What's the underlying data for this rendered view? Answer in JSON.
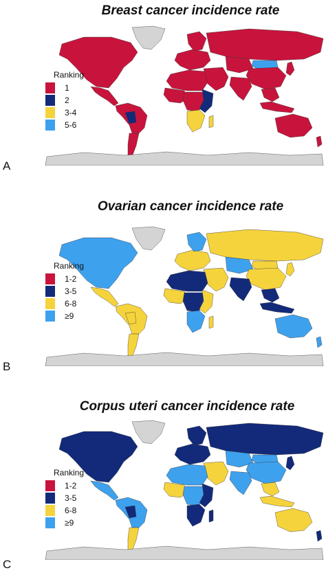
{
  "palette": {
    "rank_red": "#c8143c",
    "rank_navy": "#132a7a",
    "rank_yellow": "#f5d33d",
    "rank_blue": "#3ea1ee",
    "no_data": "#d4d4d4",
    "border": "#333333"
  },
  "panels": [
    {
      "letter": "A",
      "title": "Breast cancer incidence rate",
      "legend_title": "Ranking",
      "legend": [
        {
          "label": "1",
          "color": "#c8143c"
        },
        {
          "label": "2",
          "color": "#132a7a"
        },
        {
          "label": "3-4",
          "color": "#f5d33d"
        },
        {
          "label": "5-6",
          "color": "#3ea1ee"
        }
      ],
      "regions": {
        "greenland": "no_data",
        "north_america": "rank_red",
        "central_america": "rank_red",
        "south_america": "rank_red",
        "brazil_west": "rank_navy",
        "patagonia": "rank_red",
        "europe": "rank_red",
        "scandinavia": "rank_red",
        "russia": "rank_red",
        "middle_east": "rank_red",
        "north_africa": "rank_red",
        "west_africa": "rank_red",
        "central_africa": "rank_red",
        "east_africa": "rank_navy",
        "southern_africa": "rank_yellow",
        "madagascar": "rank_yellow",
        "central_asia": "rank_red",
        "mongolia": "rank_blue",
        "china": "rank_red",
        "india": "rank_red",
        "southeast_asia": "rank_red",
        "japan": "rank_red",
        "indonesia": "rank_red",
        "australia": "rank_red",
        "new_zealand": "rank_red",
        "antarctica": "no_data"
      }
    },
    {
      "letter": "B",
      "title": "Ovarian cancer incidence rate",
      "legend_title": "Ranking",
      "legend": [
        {
          "label": "1-2",
          "color": "#c8143c"
        },
        {
          "label": "3-5",
          "color": "#132a7a"
        },
        {
          "label": "6-8",
          "color": "#f5d33d"
        },
        {
          "label": "≥9",
          "color": "#3ea1ee"
        }
      ],
      "regions": {
        "greenland": "no_data",
        "north_america": "rank_blue",
        "central_america": "rank_yellow",
        "south_america": "rank_yellow",
        "brazil_west": "rank_yellow",
        "patagonia": "rank_yellow",
        "europe": "rank_yellow",
        "scandinavia": "rank_blue",
        "russia": "rank_yellow",
        "middle_east": "rank_yellow",
        "north_africa": "rank_navy",
        "west_africa": "rank_yellow",
        "central_africa": "rank_navy",
        "east_africa": "rank_yellow",
        "southern_africa": "rank_blue",
        "madagascar": "rank_yellow",
        "central_asia": "rank_blue",
        "mongolia": "rank_yellow",
        "china": "rank_yellow",
        "india": "rank_navy",
        "southeast_asia": "rank_navy",
        "japan": "rank_yellow",
        "indonesia": "rank_navy",
        "australia": "rank_blue",
        "new_zealand": "rank_blue",
        "antarctica": "no_data"
      }
    },
    {
      "letter": "C",
      "title": "Corpus uteri cancer incidence rate",
      "legend_title": "Ranking",
      "legend": [
        {
          "label": "1-2",
          "color": "#c8143c"
        },
        {
          "label": "3-5",
          "color": "#132a7a"
        },
        {
          "label": "6-8",
          "color": "#f5d33d"
        },
        {
          "label": "≥9",
          "color": "#3ea1ee"
        }
      ],
      "regions": {
        "greenland": "no_data",
        "north_america": "rank_navy",
        "central_america": "rank_blue",
        "south_america": "rank_blue",
        "brazil_west": "rank_navy",
        "patagonia": "rank_yellow",
        "europe": "rank_navy",
        "scandinavia": "rank_navy",
        "russia": "rank_navy",
        "middle_east": "rank_yellow",
        "north_africa": "rank_blue",
        "west_africa": "rank_yellow",
        "central_africa": "rank_blue",
        "east_africa": "rank_navy",
        "southern_africa": "rank_navy",
        "madagascar": "rank_navy",
        "central_asia": "rank_blue",
        "mongolia": "rank_blue",
        "china": "rank_blue",
        "india": "rank_blue",
        "southeast_asia": "rank_yellow",
        "japan": "rank_navy",
        "indonesia": "rank_yellow",
        "australia": "rank_yellow",
        "new_zealand": "rank_navy",
        "antarctica": "no_data"
      }
    }
  ]
}
